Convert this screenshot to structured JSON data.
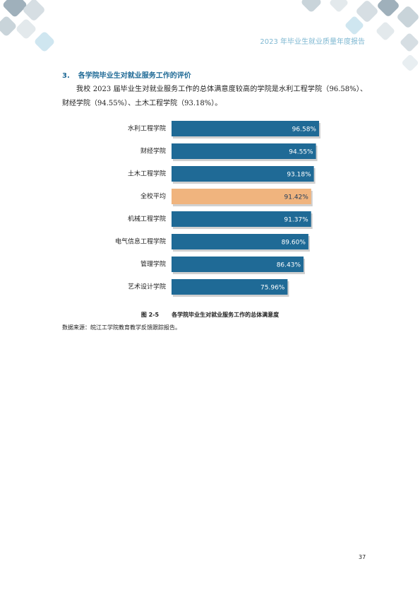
{
  "header": {
    "title": "2023 年毕业生就业质量年度报告"
  },
  "section": {
    "number": "3.",
    "title": "各学院毕业生对就业服务工作的评价",
    "paragraph": "我校 2023 届毕业生对就业服务工作的总体满意度较高的学院是水利工程学院（96.58%）、财经学院（94.55%）、土木工程学院（93.18%）。"
  },
  "chart_data": {
    "type": "bar",
    "orientation": "horizontal",
    "figure_label": "图 2-5",
    "title": "各学院毕业生对就业服务工作的总体满意度",
    "categories": [
      "水利工程学院",
      "财经学院",
      "土木工程学院",
      "全校平均",
      "机械工程学院",
      "电气信息工程学院",
      "管理学院",
      "艺术设计学院"
    ],
    "values": [
      96.58,
      94.55,
      93.18,
      91.42,
      91.37,
      89.6,
      86.43,
      75.96
    ],
    "value_labels": [
      "96.58%",
      "94.55%",
      "93.18%",
      "91.42%",
      "91.37%",
      "89.60%",
      "86.43%",
      "75.96%"
    ],
    "colors": [
      "#1f6a96",
      "#1f6a96",
      "#1f6a96",
      "#f0b47e",
      "#1f6a96",
      "#1f6a96",
      "#1f6a96",
      "#1f6a96"
    ]
  },
  "source": "数据来源：皖江工学院教育教学反馈跟踪报告。",
  "page_number": "37"
}
